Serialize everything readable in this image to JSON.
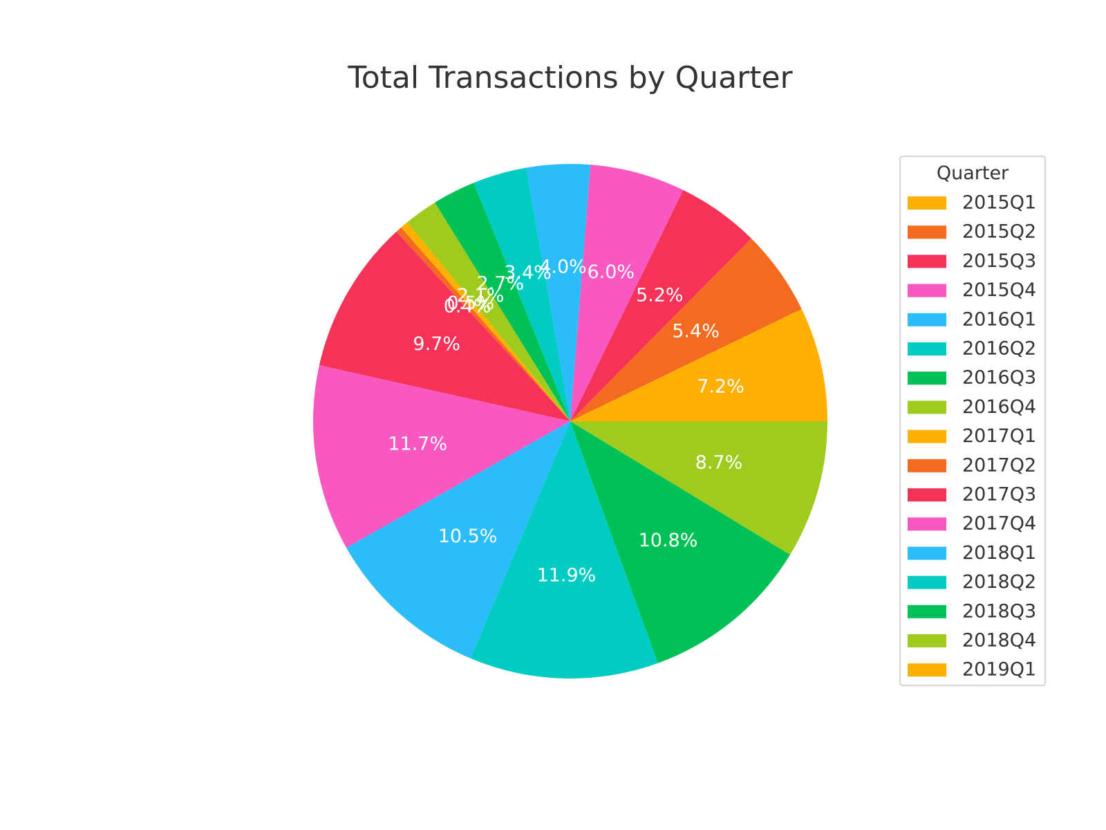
{
  "chart_data": {
    "type": "pie",
    "title": "Total Transactions by Quarter",
    "legend": {
      "title": "Quarter",
      "placement": "right"
    },
    "start_angle_deg": 0,
    "direction": "counterclockwise",
    "slices": [
      {
        "label": "2015Q1",
        "value": 7.2,
        "display": "7.2%",
        "color": "#FFB000"
      },
      {
        "label": "2015Q2",
        "value": 5.4,
        "display": "5.4%",
        "color": "#F26B21"
      },
      {
        "label": "2015Q3",
        "value": 5.2,
        "display": "5.2%",
        "color": "#F53358"
      },
      {
        "label": "2015Q4",
        "value": 6.0,
        "display": "6.0%",
        "color": "#F858C0"
      },
      {
        "label": "2016Q1",
        "value": 4.0,
        "display": "4.0%",
        "color": "#2BBDFB"
      },
      {
        "label": "2016Q2",
        "value": 3.4,
        "display": "3.4%",
        "color": "#00CCC2"
      },
      {
        "label": "2016Q3",
        "value": 2.7,
        "display": "2.7%",
        "color": "#00C156"
      },
      {
        "label": "2016Q4",
        "value": 2.1,
        "display": "2.1%",
        "color": "#9ECB1E"
      },
      {
        "label": "2017Q1",
        "value": 0.5,
        "display": "0.5%",
        "color": "#FFB000"
      },
      {
        "label": "2017Q2",
        "value": 0.4,
        "display": "0.4%",
        "color": "#F26B21"
      },
      {
        "label": "2017Q3",
        "value": 9.7,
        "display": "9.7%",
        "color": "#F53358"
      },
      {
        "label": "2017Q4",
        "value": 11.7,
        "display": "11.7%",
        "color": "#F858C0"
      },
      {
        "label": "2018Q1",
        "value": 10.5,
        "display": "10.5%",
        "color": "#2BBDFB"
      },
      {
        "label": "2018Q2",
        "value": 11.9,
        "display": "11.9%",
        "color": "#00CCC2"
      },
      {
        "label": "2018Q3",
        "value": 10.8,
        "display": "10.8%",
        "color": "#00C156"
      },
      {
        "label": "2018Q4",
        "value": 8.7,
        "display": "8.7%",
        "color": "#9ECB1E"
      },
      {
        "label": "2019Q1",
        "value": 0.0,
        "display": "",
        "color": "#FFB000"
      }
    ]
  }
}
